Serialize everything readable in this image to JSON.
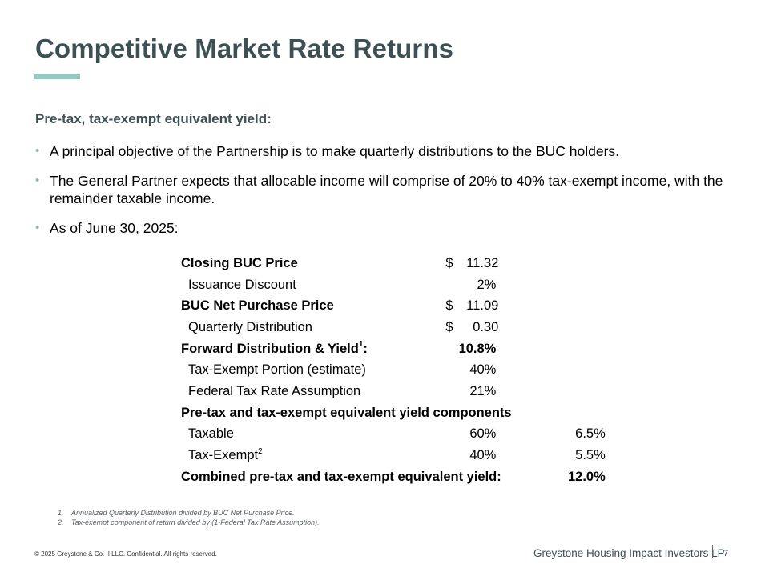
{
  "slide": {
    "title": "Competitive Market Rate Returns",
    "subtitle": "Pre-tax, tax-exempt equivalent yield:",
    "bullets": [
      "A principal objective of the Partnership is to make quarterly distributions to the BUC holders.",
      "The General Partner expects that allocable income will comprise of 20% to 40% tax-exempt income, with the remainder taxable income.",
      "As of June 30, 2025:"
    ],
    "bullet_glyph": "•"
  },
  "table": {
    "closing_price": {
      "label": "Closing BUC Price",
      "currency": "$",
      "amount": "11.32"
    },
    "issuance_discount": {
      "label": "Issuance Discount",
      "value": "2%"
    },
    "net_purchase_price": {
      "label": "BUC Net Purchase Price",
      "currency": "$",
      "amount": "11.09"
    },
    "quarterly_distribution": {
      "label": "Quarterly Distribution",
      "currency": "$",
      "amount": "0.30"
    },
    "forward_yield": {
      "label": "Forward Distribution & Yield",
      "sup": "1",
      "colon": ":",
      "value": "10.8%"
    },
    "tax_exempt_portion": {
      "label": "Tax-Exempt Portion (estimate)",
      "value": "40%"
    },
    "federal_tax_rate": {
      "label": "Federal Tax Rate Assumption",
      "value": "21%"
    },
    "components_header": {
      "label": "Pre-tax and tax-exempt equivalent yield components"
    },
    "taxable": {
      "label": "Taxable",
      "value": "60%",
      "yield": "6.5%"
    },
    "tax_exempt": {
      "label": "Tax-Exempt",
      "sup": "2",
      "value": "40%",
      "yield": "5.5%"
    },
    "combined": {
      "label": "Combined pre-tax and tax-exempt equivalent yield:",
      "yield": "12.0%"
    }
  },
  "footnotes": [
    {
      "num": "1.",
      "text": "Annualized Quarterly Distribution divided by BUC Net Purchase Price."
    },
    {
      "num": "2.",
      "text": "Tax-exempt component of return divided by (1-Federal Tax Rate Assumption)."
    }
  ],
  "footer": {
    "copyright": "© 2025 Greystone & Co. II LLC. Confidential. All rights reserved.",
    "company": "Greystone Housing Impact Investors LP",
    "page": "7"
  },
  "colors": {
    "title": "#3d5155",
    "accent_bar": "#8ecdc4",
    "bullet": "#8fb8b5"
  }
}
